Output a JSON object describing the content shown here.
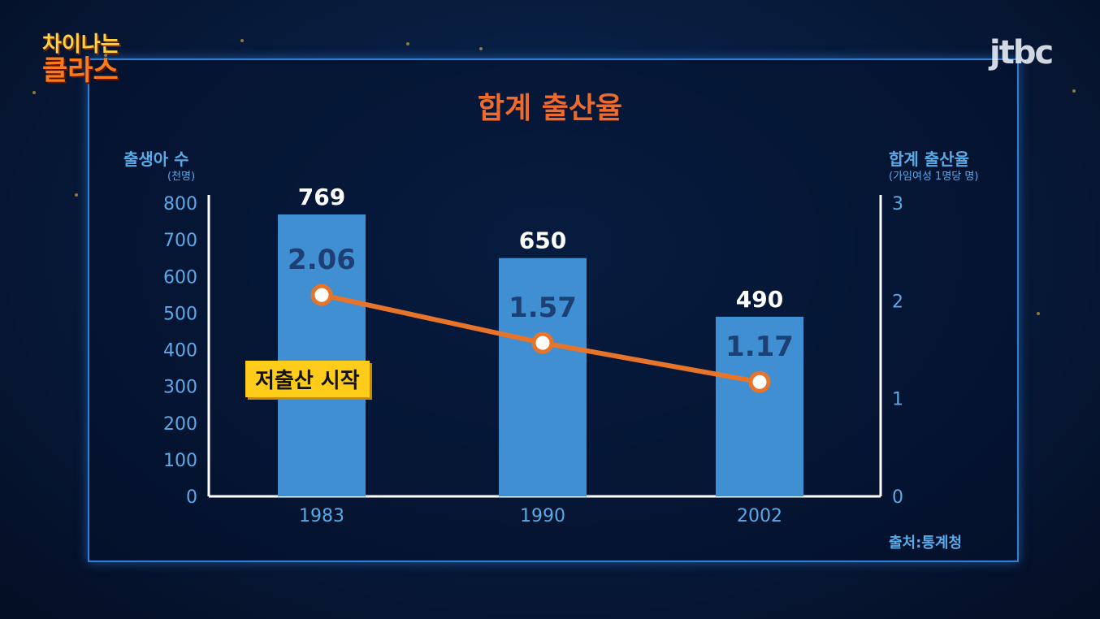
{
  "logo": {
    "line1": "차이나는",
    "line2": "클라스"
  },
  "channel": "jtbc",
  "chart_data": {
    "type": "bar",
    "title": "합계 출산율",
    "categories": [
      "1983",
      "1990",
      "2002"
    ],
    "series": [
      {
        "type": "bar",
        "axis": "left",
        "values": [
          769,
          650,
          490
        ],
        "color": "#3f8fd2"
      },
      {
        "type": "line",
        "axis": "right",
        "values": [
          2.06,
          1.57,
          1.17
        ],
        "color": "#e8742a"
      }
    ],
    "left_axis": {
      "label": "출생아 수",
      "unit": "(천명)",
      "ylim": [
        0,
        800
      ],
      "ticks": [
        "0",
        "100",
        "200",
        "300",
        "400",
        "500",
        "600",
        "700",
        "800"
      ]
    },
    "right_axis": {
      "label": "합계 출산율",
      "unit": "(가임여성 1명당 명)",
      "ylim": [
        0,
        3
      ],
      "ticks": [
        "0",
        "1",
        "2",
        "3"
      ]
    },
    "annotation": "저출산 시작",
    "source": "출처:통계청",
    "grid": false
  }
}
